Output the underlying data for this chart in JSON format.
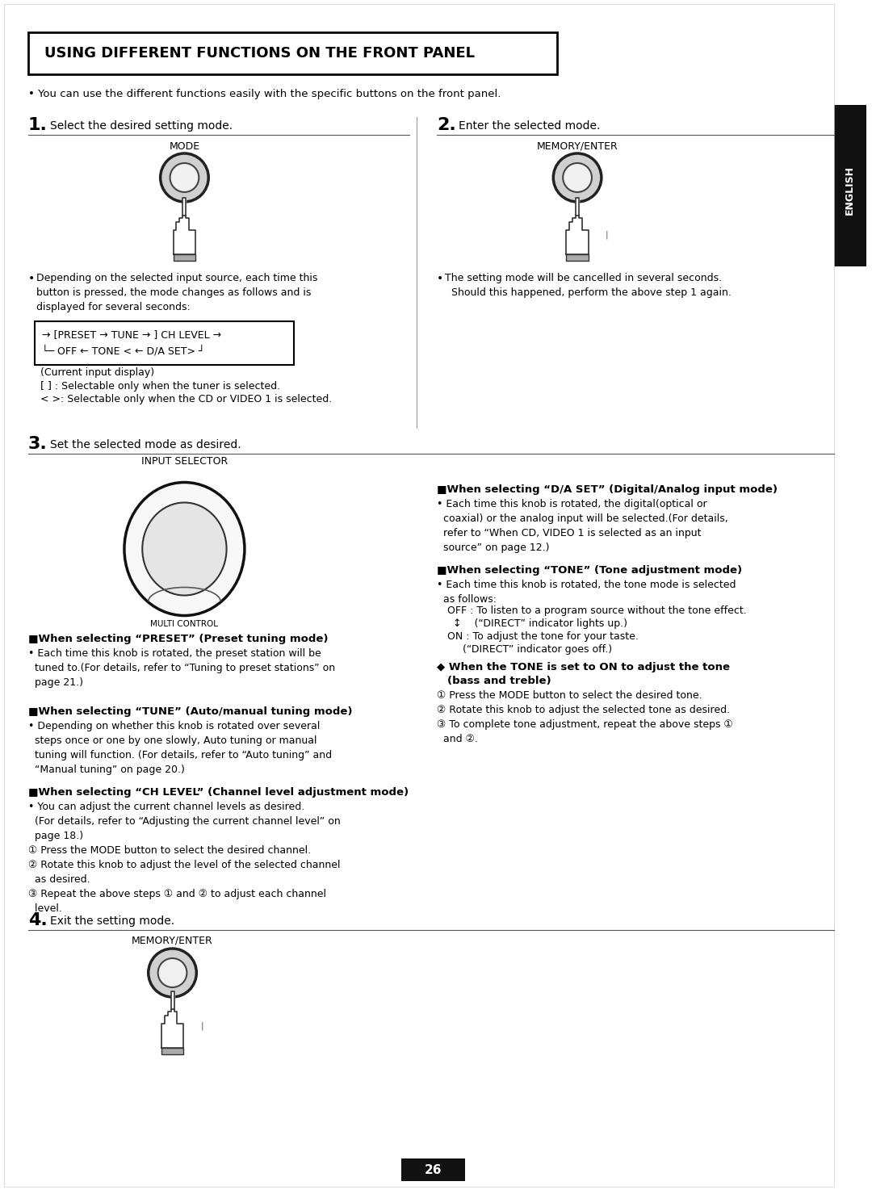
{
  "title": "USING DIFFERENT FUNCTIONS ON THE FRONT PANEL",
  "subtitle": "You can use the different functions easily with the specific buttons on the front panel.",
  "bg_color": "#ffffff",
  "border_color": "#000000",
  "page_number": "26",
  "english_tab": "ENGLISH",
  "step1_num": "1.",
  "step1_text": "Select the desired setting mode.",
  "step2_num": "2.",
  "step2_text": "Enter the selected mode.",
  "step3_num": "3.",
  "step3_text": "Set the selected mode as desired.",
  "step4_num": "4.",
  "step4_text": "Exit the setting mode.",
  "mode_label": "MODE",
  "memory_enter_label": "MEMORY/ENTER",
  "input_selector_label": "INPUT SELECTOR",
  "multi_control_label": "MULTI CONTROL",
  "bullet1_text": "Depending on the selected input source, each time this\nbutton is pressed, the mode changes as follows and is\ndisplayed for several seconds:",
  "flow_diagram": "[→ [PRESET → TUNE → ] CH LEVEL →\n└─ OFF ← TONE < ← D/A SET> ┘",
  "current_input": "(Current input display)",
  "note1": "[ ] : Selectable only when the tuner is selected.",
  "note2": "< >: Selectable only when the CD or VIDEO 1 is selected.",
  "bullet2_text": "The setting mode will be cancelled in several seconds.\n  Should this happened, perform the above step 1 again.",
  "preset_title": "■When selecting “PRESET” (Preset tuning mode)",
  "preset_body": "Each time this knob is rotated, the preset station will be\ntuned to.(For details, refer to “Tuning to preset stations” on\npage 21.)",
  "tune_title": "■When selecting “TUNE” (Auto/manual tuning mode)",
  "tune_body": "Depending on whether this knob is rotated over several\nsteps once or one by one slowly, Auto tuning or manual\ntuning will function. (For details, refer to “Auto tuning” and\n“Manual tuning” on page 20.)",
  "ch_title": "■When selecting “CH LEVEL” (Channel level adjustment mode)",
  "ch_body": "You can adjust the current channel levels as desired.\n (For details, refer to “Adjusting the current channel level” on\n page 18.)\n① Press the MODE button to select the desired channel.\n② Rotate this knob to adjust the level of the selected channel\n  as desired.\n③ Repeat the above steps ① and ② to adjust each channel\n  level.",
  "da_title": "■When selecting “D/A SET” (Digital/Analog input mode)",
  "da_body": "Each time this knob is rotated, the digital(optical or\ncoaxial) or the analog input will be selected.(For details,\nrefer to “When CD, VIDEO 1 is selected as an input\nsource” on page 12.)",
  "tone_title": "■When selecting “TONE” (Tone adjustment mode)",
  "tone_body": "Each time this knob is rotated, the tone mode is selected\nas follows:\n  OFF : To listen to a program source without the tone effect.\n  ↕    (“DIRECT” indicator lights up.)\n  ON : To adjust the tone for your taste.\n       (“DIRECT” indicator goes off.)",
  "tone_set_title": "◆ When the TONE is set to ON to adjust the tone\n  (bass and treble)",
  "tone_set_body": "① Press the MODE button to select the desired tone.\n② Rotate this knob to adjust the selected tone as desired.\n③ To complete tone adjustment, repeat the above steps ①\n  and ②."
}
